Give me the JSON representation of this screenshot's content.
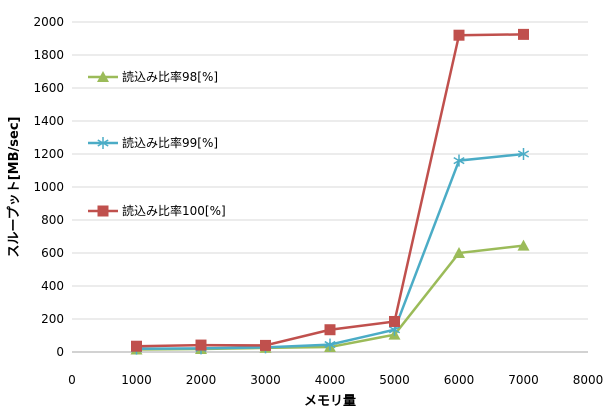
{
  "chart_data": {
    "type": "line",
    "xlabel": "メモリ量",
    "ylabel": "スループット[MB/sec]",
    "xlim": [
      0,
      8000
    ],
    "ylim": [
      0,
      2000
    ],
    "x_ticks": [
      0,
      1000,
      2000,
      3000,
      4000,
      5000,
      6000,
      7000,
      8000
    ],
    "y_ticks": [
      0,
      200,
      400,
      600,
      800,
      1000,
      1200,
      1400,
      1600,
      1800,
      2000
    ],
    "grid": "horizontal",
    "legend_position": "left",
    "x": [
      1000,
      2000,
      3000,
      4000,
      5000,
      6000,
      7000
    ],
    "series": [
      {
        "name": "読込み比率98[%]",
        "color": "#9bbb59",
        "marker": "triangle",
        "values": [
          15,
          18,
          25,
          30,
          105,
          600,
          645
        ]
      },
      {
        "name": "読込み比率99[%]",
        "color": "#4bacc6",
        "marker": "asterisk",
        "values": [
          20,
          22,
          28,
          45,
          135,
          1160,
          1200
        ]
      },
      {
        "name": "読込み比率100[%]",
        "color": "#c0504d",
        "marker": "square",
        "values": [
          35,
          42,
          40,
          135,
          185,
          1920,
          1925
        ]
      }
    ]
  }
}
